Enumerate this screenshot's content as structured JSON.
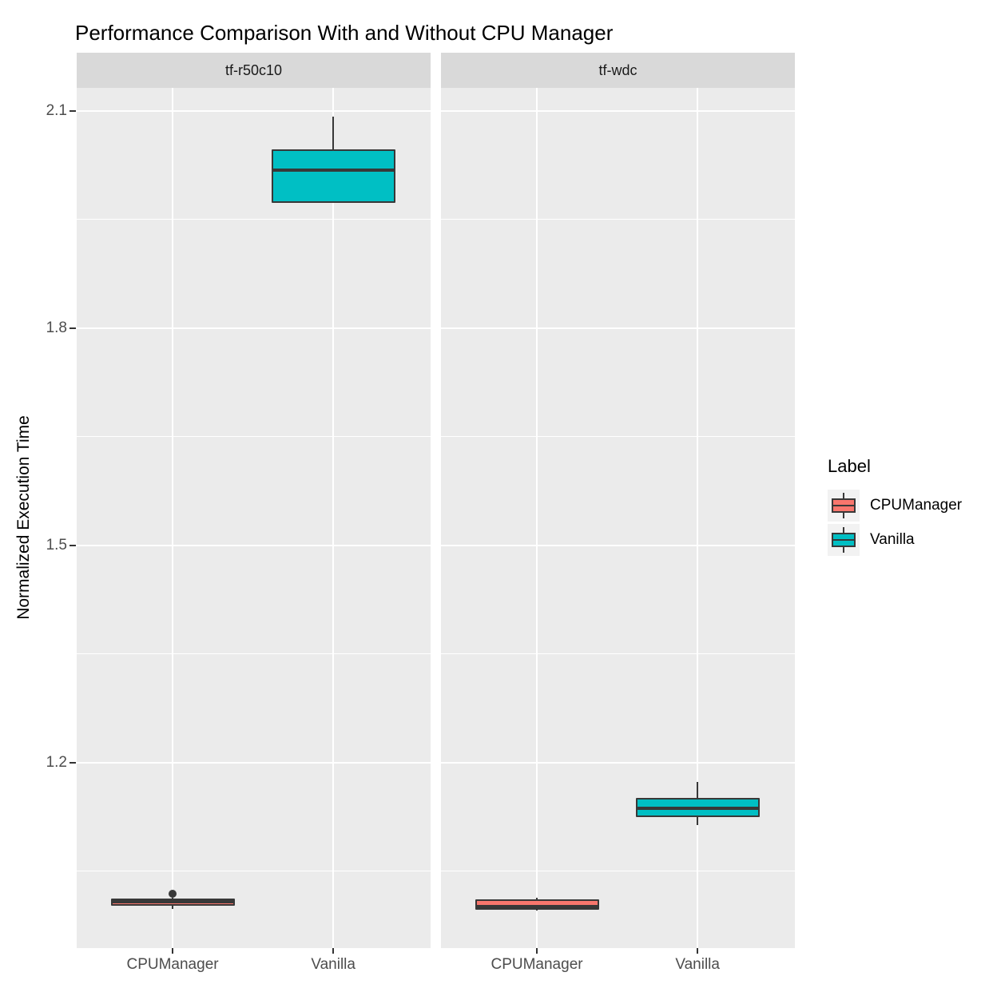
{
  "chart_data": {
    "type": "boxplot",
    "title": "Performance Comparison With and Without CPU Manager",
    "xlabel": "",
    "ylabel": "Normalized Execution Time",
    "categories": [
      "CPUManager",
      "Vanilla"
    ],
    "y_major_ticks": [
      1.2,
      1.5,
      1.8,
      2.1
    ],
    "y_minor_ticks": [
      1.05,
      1.35,
      1.65,
      1.95
    ],
    "ylim": [
      0.944,
      2.132
    ],
    "grid": "on",
    "legend_position": "right",
    "facets": [
      {
        "label": "tf-r50c10",
        "boxes": [
          {
            "group": "CPUManager",
            "color": "#F8766D",
            "min": 0.998,
            "q1": 1.003,
            "median": 1.008,
            "q3": 1.012,
            "max": 1.013,
            "outliers": [
              1.019
            ]
          },
          {
            "group": "Vanilla",
            "color": "#00BFC4",
            "min": 1.973,
            "q1": 1.973,
            "median": 2.018,
            "q3": 2.047,
            "max": 2.092,
            "outliers": []
          }
        ]
      },
      {
        "label": "tf-wdc",
        "boxes": [
          {
            "group": "CPUManager",
            "color": "#F8766D",
            "min": 0.996,
            "q1": 0.997,
            "median": 1.001,
            "q3": 1.011,
            "max": 1.013,
            "outliers": []
          },
          {
            "group": "Vanilla",
            "color": "#00BFC4",
            "min": 1.114,
            "q1": 1.125,
            "median": 1.137,
            "q3": 1.151,
            "max": 1.173,
            "outliers": []
          }
        ]
      }
    ]
  },
  "legend": {
    "title": "Label",
    "entries": [
      {
        "label": "CPUManager",
        "color": "#F8766D"
      },
      {
        "label": "Vanilla",
        "color": "#00BFC4"
      }
    ]
  },
  "colors": {
    "panel_background": "#EBEBEB",
    "strip_background": "#D9D9D9",
    "gridline": "#FFFFFF",
    "box_border": "#383838",
    "axis_text": "#4D4D4D",
    "cpumanager_fill": "#F8766D",
    "vanilla_fill": "#00BFC4"
  }
}
